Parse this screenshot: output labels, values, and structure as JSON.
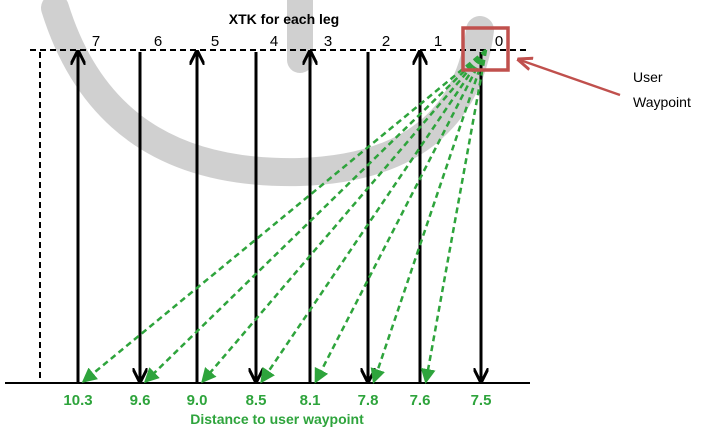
{
  "title": "XTK for each leg",
  "bottom_title": "Distance to user waypoint",
  "callout": {
    "line1": "User",
    "line2": "Waypoint"
  },
  "legs": [
    {
      "label": "7",
      "distance": "10.3",
      "direction": "up"
    },
    {
      "label": "6",
      "distance": "9.6",
      "direction": "down"
    },
    {
      "label": "5",
      "distance": "9.0",
      "direction": "up"
    },
    {
      "label": "4",
      "distance": "8.5",
      "direction": "down"
    },
    {
      "label": "3",
      "distance": "8.1",
      "direction": "up"
    },
    {
      "label": "2",
      "distance": "7.8",
      "direction": "down"
    },
    {
      "label": "1",
      "distance": "7.6",
      "direction": "up"
    },
    {
      "label": "0",
      "distance": "7.5",
      "direction": "down"
    }
  ],
  "colors": {
    "line": "#000000",
    "dist_arrow": "#2ea43c",
    "waypoint_box": "#c0504d",
    "watermark": "#c8c8c8"
  }
}
